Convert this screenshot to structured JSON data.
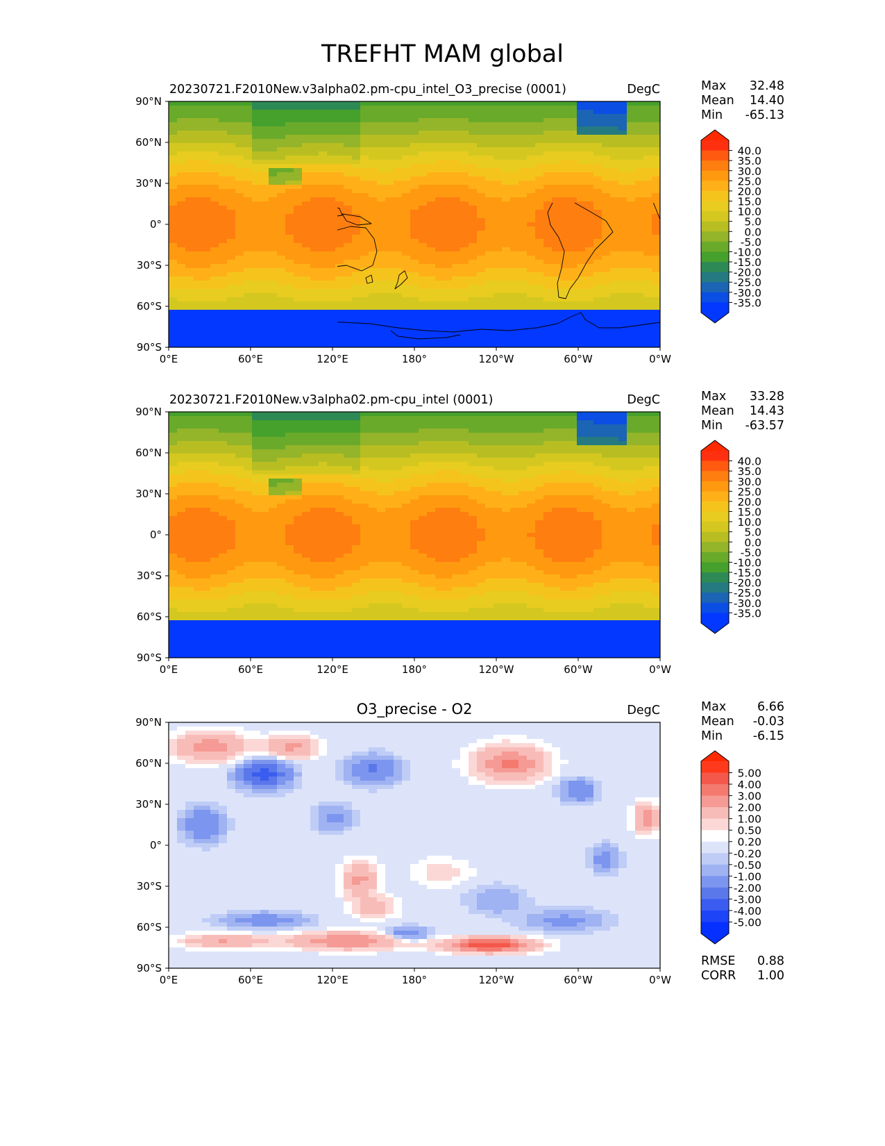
{
  "page_title": "TREFHT MAM global",
  "chart_data": [
    {
      "type": "heatmap",
      "title": "20230721.F2010New.v3alpha02.pm-cpu_intel_O3_precise (0001)",
      "units": "DegC",
      "stats": {
        "max_label": "Max",
        "max": "32.48",
        "mean_label": "Mean",
        "mean": "14.40",
        "min_label": "Min",
        "min": "-65.13"
      },
      "x_ticks": [
        "0°E",
        "60°E",
        "120°E",
        "180°",
        "120°W",
        "60°W",
        "0°W"
      ],
      "y_ticks": [
        "90°N",
        "60°N",
        "30°N",
        "0°",
        "30°S",
        "60°S",
        "90°S"
      ],
      "colorbar": {
        "levels": [
          "40.0",
          "35.0",
          "30.0",
          "25.0",
          "20.0",
          "15.0",
          "10.0",
          "5.0",
          "0.0",
          "-5.0",
          "-10.0",
          "-15.0",
          "-20.0",
          "-25.0",
          "-30.0",
          "-35.0"
        ],
        "colors": [
          "#ff3010",
          "#ff5a10",
          "#ff7e10",
          "#ff9a10",
          "#ffb018",
          "#f5c41c",
          "#e8cc20",
          "#d4c820",
          "#b8be22",
          "#94b42a",
          "#6aaa2a",
          "#46a02c",
          "#2e8a54",
          "#247a80",
          "#1c64b4",
          "#0a4ee4",
          "#0238ff"
        ],
        "max_color": "#ff2a00",
        "min_color": "#0238ff"
      }
    },
    {
      "type": "heatmap",
      "title": "20230721.F2010New.v3alpha02.pm-cpu_intel (0001)",
      "units": "DegC",
      "stats": {
        "max_label": "Max",
        "max": "33.28",
        "mean_label": "Mean",
        "mean": "14.43",
        "min_label": "Min",
        "min": "-63.57"
      },
      "x_ticks": [
        "0°E",
        "60°E",
        "120°E",
        "180°",
        "120°W",
        "60°W",
        "0°W"
      ],
      "y_ticks": [
        "90°N",
        "60°N",
        "30°N",
        "0°",
        "30°S",
        "60°S",
        "90°S"
      ],
      "colorbar": {
        "levels": [
          "40.0",
          "35.0",
          "30.0",
          "25.0",
          "20.0",
          "15.0",
          "10.0",
          "5.0",
          "0.0",
          "-5.0",
          "-10.0",
          "-15.0",
          "-20.0",
          "-25.0",
          "-30.0",
          "-35.0"
        ],
        "colors": [
          "#ff3010",
          "#ff5a10",
          "#ff7e10",
          "#ff9a10",
          "#ffb018",
          "#f5c41c",
          "#e8cc20",
          "#d4c820",
          "#b8be22",
          "#94b42a",
          "#6aaa2a",
          "#46a02c",
          "#2e8a54",
          "#247a80",
          "#1c64b4",
          "#0a4ee4",
          "#0238ff"
        ],
        "max_color": "#ff2a00",
        "min_color": "#0238ff"
      }
    },
    {
      "type": "heatmap",
      "title": "O3_precise - O2",
      "units": "DegC",
      "stats": {
        "max_label": "Max",
        "max": "6.66",
        "mean_label": "Mean",
        "mean": "-0.03",
        "min_label": "Min",
        "min": "-6.15"
      },
      "x_ticks": [
        "0°E",
        "60°E",
        "120°E",
        "180°",
        "120°W",
        "60°W",
        "0°W"
      ],
      "y_ticks": [
        "90°N",
        "60°N",
        "30°N",
        "0°",
        "30°S",
        "60°S",
        "90°S"
      ],
      "colorbar": {
        "levels": [
          "5.00",
          "4.00",
          "3.00",
          "2.00",
          "1.00",
          "0.50",
          "0.20",
          "-0.20",
          "-0.50",
          "-1.00",
          "-2.00",
          "-3.00",
          "-4.00",
          "-5.00"
        ],
        "colors": [
          "#ff3a1c",
          "#f4584a",
          "#f47a70",
          "#f59a94",
          "#f8bcb8",
          "#fbd8d6",
          "#ffffff",
          "#dde4fa",
          "#bfcdf6",
          "#9fb2f2",
          "#7c95ee",
          "#5a78ea",
          "#3a5cf0",
          "#1e44f8",
          "#0530ff"
        ],
        "max_color": "#ff2a00",
        "min_color": "#0530ff"
      },
      "rmse_label": "RMSE",
      "rmse": "0.88",
      "corr_label": "CORR",
      "corr": "1.00"
    }
  ]
}
